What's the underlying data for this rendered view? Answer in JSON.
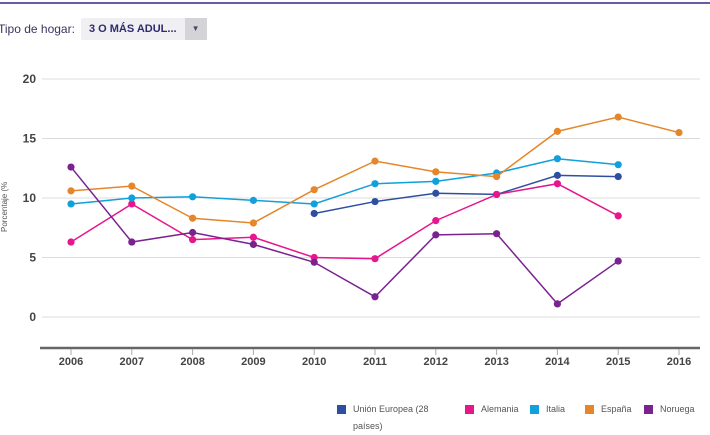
{
  "filter": {
    "label": "Tipo de hogar:",
    "value": "3 O MÁS ADUL...",
    "icon": "caret-down-icon"
  },
  "chart_data": {
    "type": "line",
    "ylabel": "Porcentaje (%",
    "xlabel": "",
    "ylim": [
      0,
      20
    ],
    "yticks": [
      "0",
      "5",
      "10",
      "15",
      "20"
    ],
    "grid": true,
    "legend_position": "bottom",
    "x": [
      "2006",
      "2007",
      "2008",
      "2009",
      "2010",
      "2011",
      "2012",
      "2013",
      "2014",
      "2015",
      "2016"
    ],
    "series": [
      {
        "name": "Unión Europea (28 países)",
        "color": "#2e4fa0",
        "values": [
          null,
          null,
          null,
          null,
          8.7,
          9.7,
          10.4,
          10.3,
          11.9,
          11.8,
          null
        ]
      },
      {
        "name": "Alemania",
        "color": "#e6168c",
        "values": [
          6.3,
          9.5,
          6.5,
          6.7,
          5.0,
          4.9,
          8.1,
          10.3,
          11.2,
          8.5,
          null
        ]
      },
      {
        "name": "Italia",
        "color": "#10a0dc",
        "values": [
          9.5,
          10.0,
          10.1,
          9.8,
          9.5,
          11.2,
          11.4,
          12.1,
          13.3,
          12.8,
          null
        ]
      },
      {
        "name": "España",
        "color": "#e5862a",
        "values": [
          10.6,
          11.0,
          8.3,
          7.9,
          10.7,
          13.1,
          12.2,
          11.8,
          15.6,
          16.8,
          15.5
        ]
      },
      {
        "name": "Noruega",
        "color": "#7a2290",
        "values": [
          12.6,
          6.3,
          7.1,
          6.1,
          4.6,
          1.7,
          6.9,
          7.0,
          1.1,
          4.7,
          null
        ]
      }
    ]
  }
}
